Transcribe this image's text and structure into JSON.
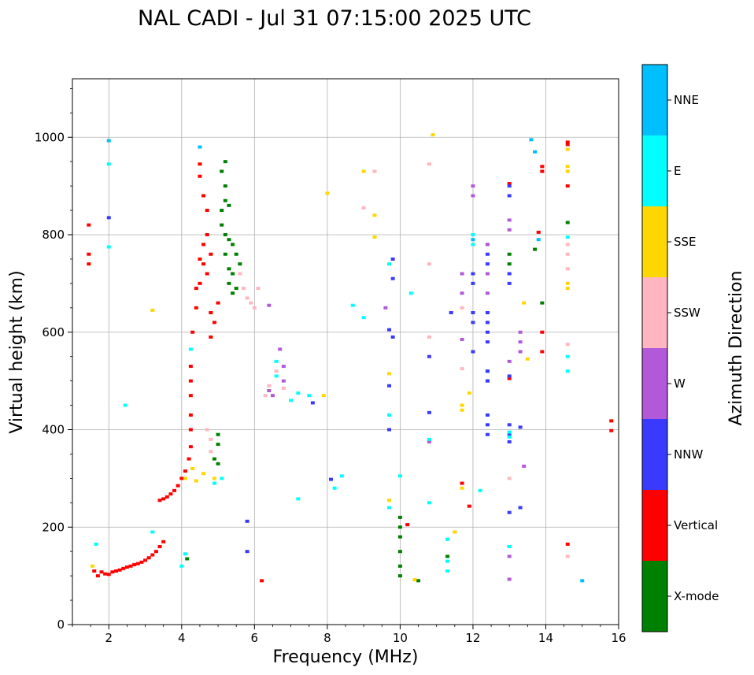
{
  "chart_data": {
    "type": "scatter",
    "title": "NAL CADI - Jul 31 07:15:00 2025 UTC",
    "xlabel": "Frequency (MHz)",
    "ylabel": "Virtual height (km)",
    "xlim": [
      1,
      16
    ],
    "ylim": [
      0,
      1120
    ],
    "x_ticks": [
      2,
      4,
      6,
      8,
      10,
      12,
      14,
      16
    ],
    "y_ticks": [
      0,
      200,
      400,
      600,
      800,
      1000
    ],
    "grid": true,
    "colorbar": {
      "title": "Azimuth Direction",
      "categories": [
        "X-mode",
        "Vertical",
        "NNW",
        "W",
        "SSW",
        "SSE",
        "E",
        "NNE"
      ],
      "colors": [
        "#008000",
        "#ff0000",
        "#3a3aff",
        "#b259d9",
        "#ffb6c1",
        "#ffd700",
        "#00ffff",
        "#00bfff"
      ]
    },
    "series": [
      {
        "name": "Vertical",
        "points": [
          [
            1.45,
            740
          ],
          [
            1.45,
            760
          ],
          [
            1.45,
            820
          ],
          [
            1.6,
            110
          ],
          [
            1.7,
            100
          ],
          [
            1.8,
            108
          ],
          [
            1.9,
            104
          ],
          [
            2.0,
            103
          ],
          [
            2.1,
            108
          ],
          [
            2.2,
            110
          ],
          [
            2.3,
            112
          ],
          [
            2.4,
            115
          ],
          [
            2.5,
            118
          ],
          [
            2.6,
            120
          ],
          [
            2.7,
            123
          ],
          [
            2.8,
            125
          ],
          [
            2.9,
            128
          ],
          [
            3.0,
            132
          ],
          [
            3.1,
            137
          ],
          [
            3.2,
            143
          ],
          [
            3.3,
            150
          ],
          [
            3.4,
            160
          ],
          [
            3.5,
            170
          ],
          [
            3.4,
            255
          ],
          [
            3.5,
            258
          ],
          [
            3.6,
            262
          ],
          [
            3.7,
            268
          ],
          [
            3.8,
            275
          ],
          [
            3.9,
            285
          ],
          [
            4.0,
            300
          ],
          [
            4.1,
            315
          ],
          [
            4.2,
            340
          ],
          [
            4.25,
            365
          ],
          [
            4.25,
            400
          ],
          [
            4.25,
            430
          ],
          [
            4.25,
            470
          ],
          [
            4.25,
            500
          ],
          [
            4.25,
            530
          ],
          [
            4.3,
            600
          ],
          [
            4.4,
            650
          ],
          [
            4.5,
            700
          ],
          [
            4.5,
            750
          ],
          [
            4.6,
            780
          ],
          [
            4.7,
            800
          ],
          [
            4.7,
            720
          ],
          [
            4.7,
            850
          ],
          [
            4.6,
            880
          ],
          [
            4.5,
            920
          ],
          [
            4.5,
            945
          ],
          [
            4.8,
            640
          ],
          [
            4.9,
            620
          ],
          [
            4.8,
            590
          ],
          [
            5.0,
            660
          ],
          [
            4.4,
            690
          ],
          [
            4.6,
            740
          ],
          [
            4.8,
            760
          ],
          [
            6.2,
            90
          ],
          [
            10.2,
            205
          ],
          [
            11.7,
            290
          ],
          [
            11.9,
            243
          ],
          [
            13.0,
            505
          ],
          [
            13.0,
            905
          ],
          [
            13.8,
            805
          ],
          [
            13.9,
            930
          ],
          [
            13.9,
            940
          ],
          [
            13.9,
            600
          ],
          [
            13.9,
            560
          ],
          [
            14.6,
            900
          ],
          [
            14.6,
            990
          ],
          [
            14.6,
            985
          ],
          [
            14.6,
            165
          ],
          [
            15.8,
            418
          ],
          [
            15.8,
            398
          ]
        ]
      },
      {
        "name": "X-mode",
        "points": [
          [
            5.0,
            390
          ],
          [
            5.0,
            370
          ],
          [
            4.9,
            340
          ],
          [
            5.0,
            330
          ],
          [
            5.1,
            820
          ],
          [
            5.1,
            850
          ],
          [
            5.2,
            800
          ],
          [
            5.2,
            760
          ],
          [
            5.3,
            730
          ],
          [
            5.3,
            700
          ],
          [
            5.4,
            680
          ],
          [
            5.2,
            900
          ],
          [
            5.2,
            950
          ],
          [
            5.3,
            860
          ],
          [
            5.4,
            780
          ],
          [
            5.5,
            760
          ],
          [
            5.6,
            740
          ],
          [
            5.4,
            720
          ],
          [
            5.5,
            690
          ],
          [
            5.3,
            790
          ],
          [
            5.2,
            870
          ],
          [
            5.1,
            930
          ],
          [
            4.15,
            135
          ],
          [
            10.0,
            220
          ],
          [
            10.0,
            200
          ],
          [
            10.0,
            180
          ],
          [
            10.0,
            150
          ],
          [
            10.0,
            120
          ],
          [
            10.0,
            100
          ],
          [
            10.5,
            90
          ],
          [
            11.3,
            140
          ],
          [
            12.4,
            500
          ],
          [
            12.4,
            520
          ],
          [
            13.0,
            760
          ],
          [
            13.0,
            740
          ],
          [
            13.9,
            660
          ],
          [
            13.7,
            770
          ],
          [
            14.6,
            825
          ]
        ]
      },
      {
        "name": "NNW",
        "points": [
          [
            2.0,
            835
          ],
          [
            5.8,
            150
          ],
          [
            5.8,
            212
          ],
          [
            7.6,
            455
          ],
          [
            8.1,
            298
          ],
          [
            9.7,
            605
          ],
          [
            9.7,
            490
          ],
          [
            9.8,
            590
          ],
          [
            9.7,
            400
          ],
          [
            9.8,
            750
          ],
          [
            9.8,
            710
          ],
          [
            10.8,
            550
          ],
          [
            10.8,
            435
          ],
          [
            11.4,
            640
          ],
          [
            12.0,
            640
          ],
          [
            12.0,
            620
          ],
          [
            12.0,
            560
          ],
          [
            12.0,
            720
          ],
          [
            12.0,
            700
          ],
          [
            12.4,
            780
          ],
          [
            12.4,
            760
          ],
          [
            12.4,
            740
          ],
          [
            12.4,
            640
          ],
          [
            12.4,
            620
          ],
          [
            12.4,
            600
          ],
          [
            12.4,
            580
          ],
          [
            12.4,
            520
          ],
          [
            12.4,
            500
          ],
          [
            12.4,
            430
          ],
          [
            12.4,
            410
          ],
          [
            12.4,
            390
          ],
          [
            13.0,
            900
          ],
          [
            13.0,
            880
          ],
          [
            13.0,
            720
          ],
          [
            13.0,
            700
          ],
          [
            13.0,
            510
          ],
          [
            13.0,
            410
          ],
          [
            13.0,
            390
          ],
          [
            13.0,
            375
          ],
          [
            13.0,
            230
          ],
          [
            13.0,
            160
          ],
          [
            13.3,
            240
          ],
          [
            13.3,
            405
          ]
        ]
      },
      {
        "name": "W",
        "points": [
          [
            6.4,
            655
          ],
          [
            6.4,
            480
          ],
          [
            6.5,
            470
          ],
          [
            6.7,
            565
          ],
          [
            6.8,
            530
          ],
          [
            6.8,
            500
          ],
          [
            9.6,
            650
          ],
          [
            10.8,
            375
          ],
          [
            11.7,
            585
          ],
          [
            11.7,
            720
          ],
          [
            11.7,
            680
          ],
          [
            12.0,
            900
          ],
          [
            12.0,
            880
          ],
          [
            12.4,
            780
          ],
          [
            12.4,
            720
          ],
          [
            12.4,
            680
          ],
          [
            13.0,
            830
          ],
          [
            13.0,
            810
          ],
          [
            13.0,
            540
          ],
          [
            13.0,
            140
          ],
          [
            13.0,
            93
          ],
          [
            13.3,
            580
          ],
          [
            13.3,
            560
          ],
          [
            13.3,
            600
          ],
          [
            13.4,
            325
          ]
        ]
      },
      {
        "name": "SSW",
        "points": [
          [
            4.7,
            400
          ],
          [
            4.8,
            380
          ],
          [
            4.8,
            355
          ],
          [
            5.6,
            720
          ],
          [
            5.7,
            690
          ],
          [
            5.8,
            670
          ],
          [
            5.9,
            660
          ],
          [
            6.0,
            650
          ],
          [
            6.1,
            690
          ],
          [
            6.3,
            470
          ],
          [
            6.4,
            490
          ],
          [
            6.6,
            520
          ],
          [
            6.8,
            485
          ],
          [
            9.0,
            855
          ],
          [
            9.3,
            930
          ],
          [
            10.8,
            945
          ],
          [
            10.8,
            740
          ],
          [
            10.8,
            590
          ],
          [
            11.7,
            525
          ],
          [
            11.7,
            650
          ],
          [
            13.0,
            300
          ],
          [
            14.6,
            760
          ],
          [
            14.6,
            730
          ],
          [
            14.6,
            575
          ],
          [
            14.6,
            140
          ],
          [
            14.6,
            780
          ]
        ]
      },
      {
        "name": "SSE",
        "points": [
          [
            1.55,
            120
          ],
          [
            3.2,
            645
          ],
          [
            4.1,
            300
          ],
          [
            4.3,
            320
          ],
          [
            4.4,
            295
          ],
          [
            4.6,
            310
          ],
          [
            4.9,
            300
          ],
          [
            7.9,
            470
          ],
          [
            8.0,
            885
          ],
          [
            9.0,
            930
          ],
          [
            9.3,
            840
          ],
          [
            9.3,
            795
          ],
          [
            9.7,
            515
          ],
          [
            9.7,
            255
          ],
          [
            10.4,
            92
          ],
          [
            10.9,
            1005
          ],
          [
            11.5,
            190
          ],
          [
            11.7,
            440
          ],
          [
            11.7,
            450
          ],
          [
            11.7,
            280
          ],
          [
            11.9,
            475
          ],
          [
            13.4,
            660
          ],
          [
            13.5,
            545
          ],
          [
            14.6,
            940
          ],
          [
            14.6,
            930
          ],
          [
            14.6,
            975
          ],
          [
            14.6,
            700
          ],
          [
            14.6,
            690
          ]
        ]
      },
      {
        "name": "E",
        "points": [
          [
            1.65,
            165
          ],
          [
            2.0,
            775
          ],
          [
            2.0,
            945
          ],
          [
            2.45,
            450
          ],
          [
            3.2,
            190
          ],
          [
            4.1,
            145
          ],
          [
            4.0,
            120
          ],
          [
            4.25,
            565
          ],
          [
            4.9,
            290
          ],
          [
            5.1,
            300
          ],
          [
            6.6,
            540
          ],
          [
            6.6,
            510
          ],
          [
            7.0,
            460
          ],
          [
            7.2,
            475
          ],
          [
            7.2,
            258
          ],
          [
            7.5,
            470
          ],
          [
            8.2,
            280
          ],
          [
            8.4,
            305
          ],
          [
            8.7,
            655
          ],
          [
            9.0,
            630
          ],
          [
            9.7,
            740
          ],
          [
            9.7,
            430
          ],
          [
            9.7,
            240
          ],
          [
            10.0,
            305
          ],
          [
            10.3,
            680
          ],
          [
            10.8,
            380
          ],
          [
            10.8,
            250
          ],
          [
            11.3,
            175
          ],
          [
            11.3,
            130
          ],
          [
            11.3,
            110
          ],
          [
            12.0,
            800
          ],
          [
            12.0,
            780
          ],
          [
            12.2,
            275
          ],
          [
            13.0,
            160
          ],
          [
            13.0,
            395
          ],
          [
            13.0,
            385
          ],
          [
            14.6,
            795
          ],
          [
            14.6,
            550
          ],
          [
            14.6,
            520
          ]
        ]
      },
      {
        "name": "NNE",
        "points": [
          [
            2.0,
            993
          ],
          [
            4.5,
            980
          ],
          [
            12.0,
            790
          ],
          [
            13.6,
            995
          ],
          [
            13.7,
            970
          ],
          [
            13.8,
            790
          ],
          [
            15.0,
            90
          ]
        ]
      }
    ]
  }
}
